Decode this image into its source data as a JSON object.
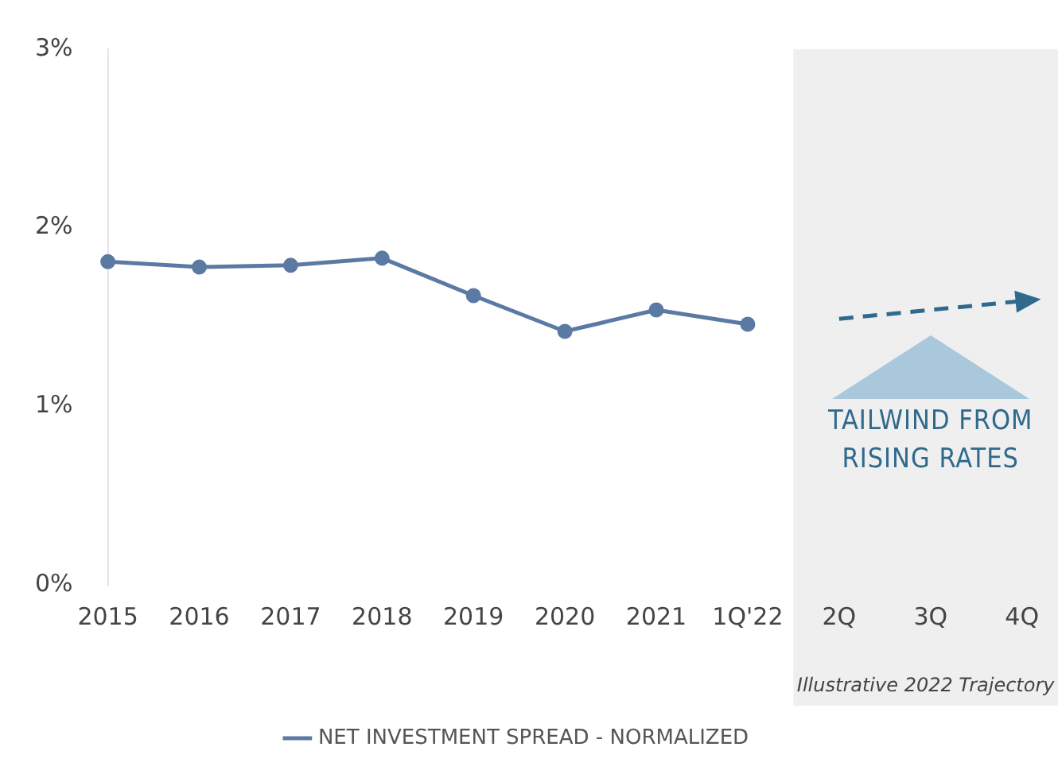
{
  "chart_data": {
    "type": "line",
    "categories": [
      "2015",
      "2016",
      "2017",
      "2018",
      "2019",
      "2020",
      "2021",
      "1Q'22",
      "2Q",
      "3Q",
      "4Q"
    ],
    "series": [
      {
        "name": "NET INVESTMENT SPREAD - NORMALIZED",
        "color": "#5b7aa3",
        "values": [
          1.81,
          1.78,
          1.79,
          1.83,
          1.62,
          1.42,
          1.54,
          1.46,
          null,
          null,
          null
        ],
        "marker": "circle",
        "line_style": "solid"
      },
      {
        "color": "#2f6a8c",
        "values": [
          null,
          null,
          null,
          null,
          null,
          null,
          null,
          null,
          1.49,
          1.54,
          1.59
        ],
        "marker": "none",
        "line_style": "dashed"
      }
    ],
    "ylim": [
      0,
      3
    ],
    "yticks": [
      {
        "value": 0,
        "label": "0%"
      },
      {
        "value": 1,
        "label": "1%"
      },
      {
        "value": 2,
        "label": "2%"
      },
      {
        "value": 3,
        "label": "3%"
      }
    ],
    "grid": false,
    "legend": "bottom",
    "bands": [
      {
        "axis": "x",
        "from": "2Q",
        "to": "4Q",
        "label": "Illustrative 2022 Trajectory",
        "color": "#efefef"
      }
    ],
    "annotations": [
      "TAILWIND FROM RISING RATES"
    ]
  }
}
